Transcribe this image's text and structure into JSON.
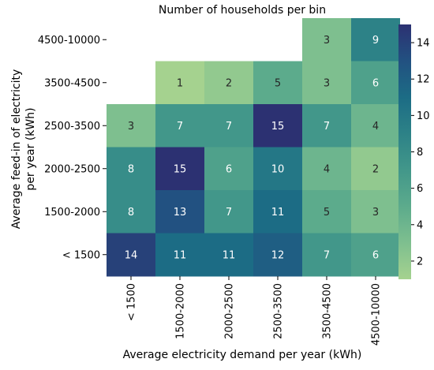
{
  "chart_data": {
    "type": "heatmap",
    "title": "Number of households per bin",
    "xlabel": "Average electricity demand per year (kWh)",
    "ylabel_lines": [
      "Average feed-in of electricity",
      "per year (kWh)"
    ],
    "x_categories": [
      "< 1500",
      "1500-2000",
      "2000-2500",
      "2500-3500",
      "3500-4500",
      "4500-10000"
    ],
    "y_categories": [
      "4500-10000",
      "3500-4500",
      "2500-3500",
      "2000-2500",
      "1500-2000",
      "< 1500"
    ],
    "values": [
      [
        null,
        null,
        null,
        null,
        3,
        9
      ],
      [
        null,
        1,
        2,
        5,
        3,
        6
      ],
      [
        3,
        7,
        7,
        15,
        7,
        4
      ],
      [
        8,
        15,
        6,
        10,
        4,
        2
      ],
      [
        8,
        13,
        7,
        11,
        5,
        3
      ],
      [
        14,
        11,
        11,
        12,
        7,
        6
      ]
    ],
    "colorbar": {
      "range": [
        1,
        15
      ],
      "ticks": [
        2,
        4,
        6,
        8,
        10,
        12,
        14
      ],
      "tick_labels": [
        "2",
        "4",
        "6",
        "8",
        "10",
        "12",
        "14"
      ],
      "colormap": "crest"
    }
  }
}
